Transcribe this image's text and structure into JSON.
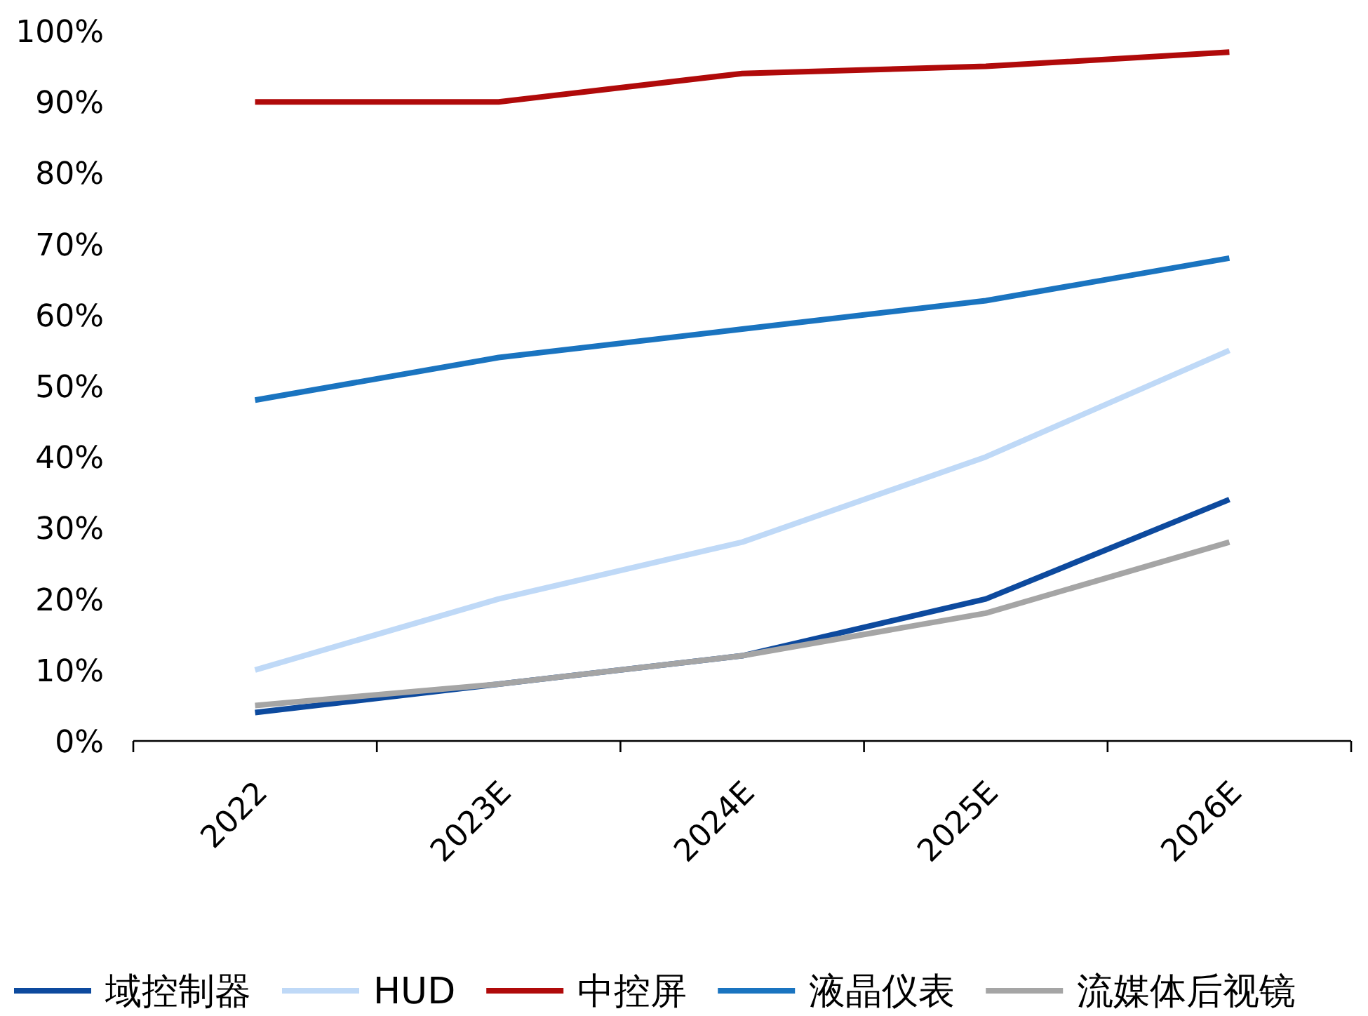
{
  "chart_data": {
    "type": "line",
    "categories": [
      "2022",
      "2023E",
      "2024E",
      "2025E",
      "2026E"
    ],
    "ylim": [
      0,
      100
    ],
    "yticks": [
      {
        "value": 0,
        "label": "0%"
      },
      {
        "value": 10,
        "label": "10%"
      },
      {
        "value": 20,
        "label": "20%"
      },
      {
        "value": 30,
        "label": "30%"
      },
      {
        "value": 40,
        "label": "40%"
      },
      {
        "value": 50,
        "label": "50%"
      },
      {
        "value": 60,
        "label": "60%"
      },
      {
        "value": 70,
        "label": "70%"
      },
      {
        "value": 80,
        "label": "80%"
      },
      {
        "value": 90,
        "label": "90%"
      },
      {
        "value": 100,
        "label": "100%"
      }
    ],
    "legend": "bottom",
    "grid": false,
    "marker": "none",
    "line_style": "solid",
    "series": [
      {
        "name": "域控制器",
        "color": "#0d4a9e",
        "values": [
          4,
          8,
          12,
          20,
          34
        ]
      },
      {
        "name": "HUD",
        "color": "#bfd9f7",
        "values": [
          10,
          20,
          28,
          40,
          55
        ]
      },
      {
        "name": "中控屏",
        "color": "#b00a0a",
        "values": [
          90,
          90,
          94,
          95,
          97
        ]
      },
      {
        "name": "液晶仪表",
        "color": "#1a74c0",
        "values": [
          48,
          54,
          58,
          62,
          68
        ]
      },
      {
        "name": "流媒体后视镜",
        "color": "#a5a5a5",
        "values": [
          5,
          8,
          12,
          18,
          28
        ]
      }
    ]
  }
}
